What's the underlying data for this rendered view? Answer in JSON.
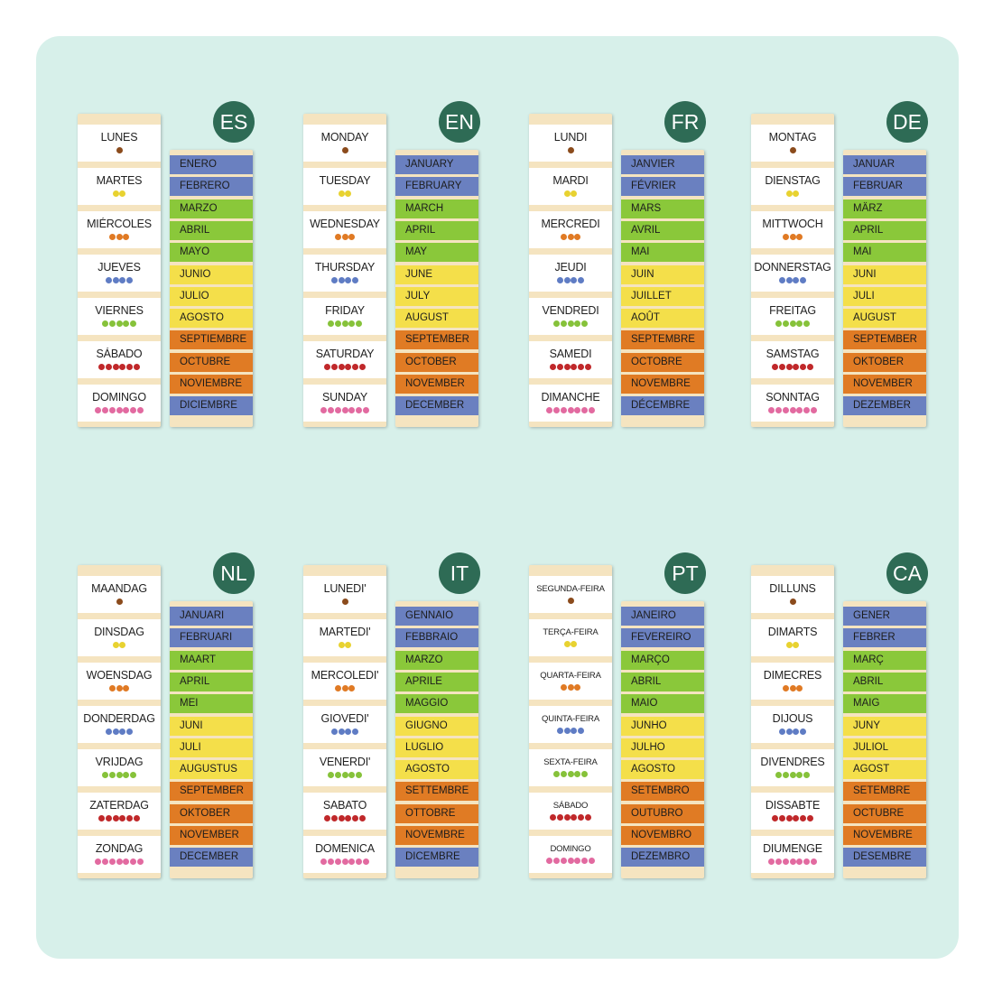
{
  "colors": {
    "board": "#d7f0ea",
    "badge": "#2e6b55",
    "tab": "#f5e4c0",
    "winter": "#6a80c0",
    "spring": "#8ac83a",
    "summer": "#f4df4a",
    "autumn": "#e07b24"
  },
  "dot_colors": [
    "#8b4b1c",
    "#e8d230",
    "#e07a24",
    "#5f7cc4",
    "#86c23a",
    "#c0282a",
    "#e26aa0"
  ],
  "month_seasons": [
    "winter",
    "winter",
    "spring",
    "spring",
    "spring",
    "summer",
    "summer",
    "summer",
    "autumn",
    "autumn",
    "autumn",
    "winter"
  ],
  "groups": [
    {
      "code": "ES",
      "days": [
        "LUNES",
        "MARTES",
        "MIÉRCOLES",
        "JUEVES",
        "VIERNES",
        "SÁBADO",
        "DOMINGO"
      ],
      "months": [
        "ENERO",
        "FEBRERO",
        "MARZO",
        "ABRIL",
        "MAYO",
        "JUNIO",
        "JULIO",
        "AGOSTO",
        "SEPTIEMBRE",
        "OCTUBRE",
        "NOVIEMBRE",
        "DICIEMBRE"
      ]
    },
    {
      "code": "EN",
      "days": [
        "MONDAY",
        "TUESDAY",
        "WEDNESDAY",
        "THURSDAY",
        "FRIDAY",
        "SATURDAY",
        "SUNDAY"
      ],
      "months": [
        "JANUARY",
        "FEBRUARY",
        "MARCH",
        "APRIL",
        "MAY",
        "JUNE",
        "JULY",
        "AUGUST",
        "SEPTEMBER",
        "OCTOBER",
        "NOVEMBER",
        "DECEMBER"
      ]
    },
    {
      "code": "FR",
      "days": [
        "LUNDI",
        "MARDI",
        "MERCREDI",
        "JEUDI",
        "VENDREDI",
        "SAMEDI",
        "DIMANCHE"
      ],
      "months": [
        "JANVIER",
        "FÉVRIER",
        "MARS",
        "AVRIL",
        "MAI",
        "JUIN",
        "JUILLET",
        "AOÛT",
        "SEPTEMBRE",
        "OCTOBRE",
        "NOVEMBRE",
        "DÉCEMBRE"
      ]
    },
    {
      "code": "DE",
      "days": [
        "MONTAG",
        "DIENSTAG",
        "MITTWOCH",
        "DONNERSTAG",
        "FREITAG",
        "SAMSTAG",
        "SONNTAG"
      ],
      "months": [
        "JANUAR",
        "FEBRUAR",
        "MÄRZ",
        "APRIL",
        "MAI",
        "JUNI",
        "JULI",
        "AUGUST",
        "SEPTEMBER",
        "OKTOBER",
        "NOVEMBER",
        "DEZEMBER"
      ]
    },
    {
      "code": "NL",
      "days": [
        "MAANDAG",
        "DINSDAG",
        "WOENSDAG",
        "DONDERDAG",
        "VRIJDAG",
        "ZATERDAG",
        "ZONDAG"
      ],
      "months": [
        "JANUARI",
        "FEBRUARI",
        "MAART",
        "APRIL",
        "MEI",
        "JUNI",
        "JULI",
        "AUGUSTUS",
        "SEPTEMBER",
        "OKTOBER",
        "NOVEMBER",
        "DECEMBER"
      ]
    },
    {
      "code": "IT",
      "days": [
        "LUNEDI'",
        "MARTEDI'",
        "MERCOLEDI'",
        "GIOVEDI'",
        "VENERDI'",
        "SABATO",
        "DOMENICA"
      ],
      "months": [
        "GENNAIO",
        "FEBBRAIO",
        "MARZO",
        "APRILE",
        "MAGGIO",
        "GIUGNO",
        "LUGLIO",
        "AGOSTO",
        "SETTEMBRE",
        "OTTOBRE",
        "NOVEMBRE",
        "DICEMBRE"
      ]
    },
    {
      "code": "PT",
      "days": [
        "SEGUNDA-FEIRA",
        "TERÇA-FEIRA",
        "QUARTA-FEIRA",
        "QUINTA-FEIRA",
        "SEXTA-FEIRA",
        "SÁBADO",
        "DOMINGO"
      ],
      "months": [
        "JANEIRO",
        "FEVEREIRO",
        "MARÇO",
        "ABRIL",
        "MAIO",
        "JUNHO",
        "JULHO",
        "AGOSTO",
        "SETEMBRO",
        "OUTUBRO",
        "NOVEMBRO",
        "DEZEMBRO"
      ]
    },
    {
      "code": "CA",
      "days": [
        "DILLUNS",
        "DIMARTS",
        "DIMECRES",
        "DIJOUS",
        "DIVENDRES",
        "DISSABTE",
        "DIUMENGE"
      ],
      "months": [
        "GENER",
        "FEBRER",
        "MARÇ",
        "ABRIL",
        "MAIG",
        "JUNY",
        "JULIOL",
        "AGOST",
        "SETEMBRE",
        "OCTUBRE",
        "NOVEMBRE",
        "DESEMBRE"
      ]
    }
  ]
}
